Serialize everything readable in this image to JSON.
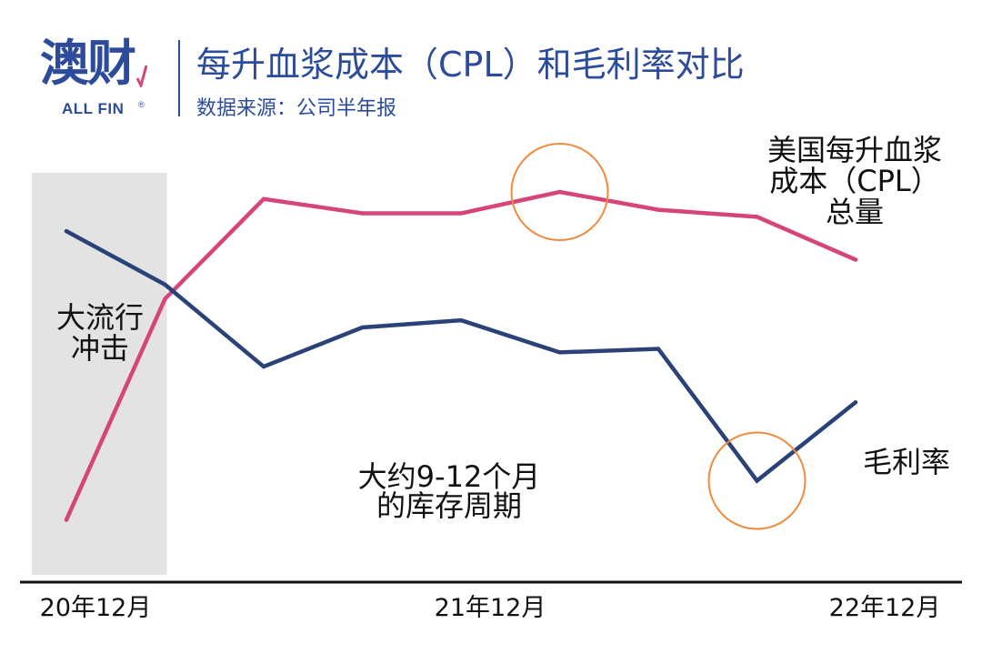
{
  "header": {
    "logo_cn": "澳财",
    "logo_en": "ALL FIN",
    "logo_reg": "®",
    "title": "每升血浆成本（CPL）和毛利率对比",
    "source": "数据来源：公司半年报"
  },
  "colors": {
    "brand": "#2c4b9a",
    "cpl_line": "#d6457a",
    "margin_line": "#2a4278",
    "highlight_circle": "#ef8a3f",
    "shade": "#e3e3e3",
    "axis": "#111111"
  },
  "chart_data": {
    "type": "line",
    "title": "每升血浆成本（CPL）和毛利率对比",
    "x": [
      0,
      1,
      2,
      3,
      4,
      5,
      6,
      7,
      8
    ],
    "tick_positions": [
      0,
      4,
      8
    ],
    "tick_labels": [
      "20年12月",
      "21年12月",
      "22年12月"
    ],
    "ylim": [
      0,
      100
    ],
    "yticks": false,
    "grid": false,
    "series": [
      {
        "name": "美国每升血浆成本（CPL）总量",
        "label_lines": [
          "美国每升血浆",
          "成本（CPL）",
          "总量"
        ],
        "values": [
          8,
          70,
          98,
          94,
          94,
          100,
          95,
          93,
          81
        ]
      },
      {
        "name": "毛利率",
        "label_lines": [
          "毛利率"
        ],
        "values": [
          89,
          74,
          51,
          62,
          64,
          55,
          56,
          19,
          41
        ]
      }
    ],
    "shaded_region": {
      "x_from": -0.35,
      "x_to": 1.0,
      "label_lines": [
        "大流行",
        "冲击"
      ]
    },
    "annotations": [
      {
        "label_lines": [
          "大约9-12个月",
          "的库存周期"
        ]
      }
    ],
    "highlights": [
      {
        "series": 0,
        "x": 5
      },
      {
        "series": 1,
        "x": 7
      }
    ]
  }
}
